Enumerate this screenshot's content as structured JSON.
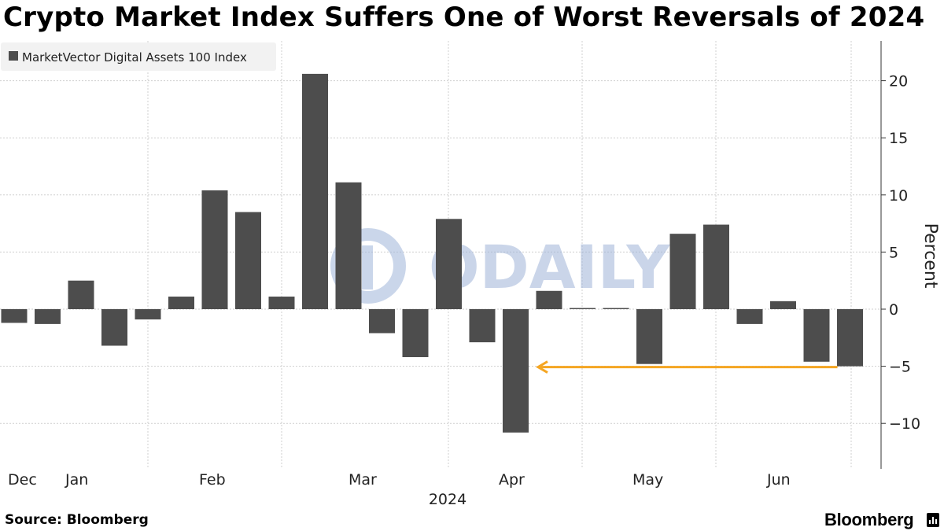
{
  "title": "Crypto Market Index Suffers One of Worst Reversals of 2024",
  "source": "Source: Bloomberg",
  "brand": "Bloomberg",
  "watermark": "ODAILY",
  "colors": {
    "bar": "#4d4d4d",
    "grid": "#cfcfcf",
    "axis": "#333333",
    "annotation_arrow": "#f5a623",
    "legend_bg": "#f2f2f2",
    "watermark": "#9fb4d8"
  },
  "chart_data": {
    "type": "bar",
    "legend": [
      "MarketVector Digital Assets 100 Index"
    ],
    "legend_position": "top-left",
    "ylabel": "Percent",
    "ylim": [
      -14,
      24
    ],
    "yticks": [
      -10,
      -5,
      0,
      5,
      10,
      15,
      20
    ],
    "y_axis_side": "right",
    "grid": true,
    "x_tick_labels": [
      "Dec",
      "Jan",
      "Feb",
      "Mar",
      "Apr",
      "May",
      "Jun"
    ],
    "x_year_label": "2024",
    "series": [
      {
        "name": "MarketVector Digital Assets 100 Index",
        "values": [
          -1.2,
          -1.3,
          2.5,
          -3.2,
          -0.9,
          1.1,
          10.4,
          8.5,
          1.1,
          20.6,
          11.1,
          -2.1,
          -4.2,
          7.9,
          -2.9,
          -10.8,
          1.6,
          0.1,
          0.1,
          -4.8,
          6.6,
          7.4,
          -1.3,
          0.7,
          -4.6,
          -5.0
        ]
      }
    ],
    "annotations": [
      {
        "type": "arrow",
        "direction": "left",
        "y": -5,
        "from_bar": 25,
        "to_bar": 16
      }
    ]
  }
}
